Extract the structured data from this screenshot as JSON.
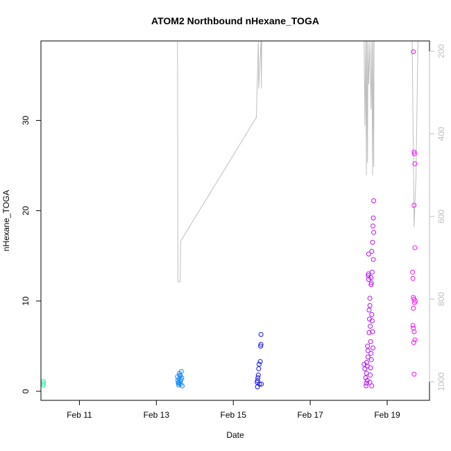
{
  "chart_data": {
    "type": "scatter",
    "title": "ATOM2 Northbound nHexane_TOGA",
    "xlabel": "Date",
    "ylabel": "nHexane_TOGA",
    "x_tick_labels": [
      "Feb 11",
      "Feb 13",
      "Feb 15",
      "Feb 17",
      "Feb 19"
    ],
    "x_tick_values": [
      11,
      13,
      15,
      17,
      19
    ],
    "xlim": [
      10.0,
      20.1
    ],
    "y_ticks": [
      0,
      10,
      20,
      30
    ],
    "ylim": [
      -1.0,
      38.8
    ],
    "secondary_axis": {
      "ticks": [
        200,
        400,
        600,
        800,
        1000
      ],
      "inverted": true,
      "lim": [
        1045,
        175
      ],
      "color": "#bebebe"
    },
    "grid": false,
    "points": [
      {
        "x": 10.06,
        "y": 1.1
      },
      {
        "x": 10.06,
        "y": 0.9
      },
      {
        "x": 10.06,
        "y": 0.7
      },
      {
        "x": 13.55,
        "y": 1.6
      },
      {
        "x": 13.56,
        "y": 1.2
      },
      {
        "x": 13.57,
        "y": 0.9
      },
      {
        "x": 13.58,
        "y": 0.7
      },
      {
        "x": 13.59,
        "y": 1.4
      },
      {
        "x": 13.6,
        "y": 2.0
      },
      {
        "x": 13.61,
        "y": 1.8
      },
      {
        "x": 13.62,
        "y": 1.1
      },
      {
        "x": 13.63,
        "y": 0.8
      },
      {
        "x": 13.64,
        "y": 1.3
      },
      {
        "x": 13.65,
        "y": 2.2
      },
      {
        "x": 13.66,
        "y": 1.5
      },
      {
        "x": 13.67,
        "y": 0.6
      },
      {
        "x": 13.58,
        "y": 1.0
      },
      {
        "x": 13.62,
        "y": 1.7
      },
      {
        "x": 15.62,
        "y": 1.0
      },
      {
        "x": 15.63,
        "y": 0.5
      },
      {
        "x": 15.64,
        "y": 1.5
      },
      {
        "x": 15.65,
        "y": 1.8
      },
      {
        "x": 15.66,
        "y": 2.5
      },
      {
        "x": 15.67,
        "y": 3.0
      },
      {
        "x": 15.68,
        "y": 0.8
      },
      {
        "x": 15.7,
        "y": 3.3
      },
      {
        "x": 15.71,
        "y": 5.0
      },
      {
        "x": 15.72,
        "y": 5.2
      },
      {
        "x": 15.72,
        "y": 6.3
      },
      {
        "x": 15.73,
        "y": 0.8
      },
      {
        "x": 15.63,
        "y": 1.2
      },
      {
        "x": 18.4,
        "y": 3.0
      },
      {
        "x": 18.42,
        "y": 2.5
      },
      {
        "x": 18.44,
        "y": 1.5
      },
      {
        "x": 18.45,
        "y": 0.6
      },
      {
        "x": 18.46,
        "y": 2.0
      },
      {
        "x": 18.47,
        "y": 3.2
      },
      {
        "x": 18.48,
        "y": 2.8
      },
      {
        "x": 18.49,
        "y": 5.0
      },
      {
        "x": 18.5,
        "y": 4.5
      },
      {
        "x": 18.51,
        "y": 12.8
      },
      {
        "x": 18.51,
        "y": 13.0
      },
      {
        "x": 18.52,
        "y": 15.2
      },
      {
        "x": 18.52,
        "y": 12.4
      },
      {
        "x": 18.53,
        "y": 6.5
      },
      {
        "x": 18.54,
        "y": 8.0
      },
      {
        "x": 18.55,
        "y": 10.3
      },
      {
        "x": 18.55,
        "y": 9.5
      },
      {
        "x": 18.56,
        "y": 7.2
      },
      {
        "x": 18.57,
        "y": 5.5
      },
      {
        "x": 18.58,
        "y": 4.2
      },
      {
        "x": 18.58,
        "y": 11.8
      },
      {
        "x": 18.59,
        "y": 12.0
      },
      {
        "x": 18.6,
        "y": 15.5
      },
      {
        "x": 18.61,
        "y": 13.2
      },
      {
        "x": 18.62,
        "y": 16.5
      },
      {
        "x": 18.63,
        "y": 18.3
      },
      {
        "x": 18.64,
        "y": 19.2
      },
      {
        "x": 18.65,
        "y": 21.1
      },
      {
        "x": 18.65,
        "y": 17.6
      },
      {
        "x": 18.6,
        "y": 8.5
      },
      {
        "x": 18.61,
        "y": 7.8
      },
      {
        "x": 18.62,
        "y": 6.6
      },
      {
        "x": 18.63,
        "y": 4.8
      },
      {
        "x": 18.59,
        "y": 3.5
      },
      {
        "x": 18.57,
        "y": 2.6
      },
      {
        "x": 18.56,
        "y": 1.8
      },
      {
        "x": 18.55,
        "y": 1.0
      },
      {
        "x": 18.6,
        "y": 0.6
      },
      {
        "x": 18.64,
        "y": 14.6
      },
      {
        "x": 18.5,
        "y": 3.8
      },
      {
        "x": 18.53,
        "y": 9.0
      },
      {
        "x": 18.48,
        "y": 1.2
      },
      {
        "x": 18.46,
        "y": 0.9
      },
      {
        "x": 18.58,
        "y": 12.6
      },
      {
        "x": 19.68,
        "y": 37.6
      },
      {
        "x": 19.7,
        "y": 26.5
      },
      {
        "x": 19.71,
        "y": 26.3
      },
      {
        "x": 19.72,
        "y": 25.2
      },
      {
        "x": 19.7,
        "y": 20.6
      },
      {
        "x": 19.72,
        "y": 15.9
      },
      {
        "x": 19.66,
        "y": 13.2
      },
      {
        "x": 19.67,
        "y": 12.5
      },
      {
        "x": 19.68,
        "y": 10.4
      },
      {
        "x": 19.7,
        "y": 10.2
      },
      {
        "x": 19.71,
        "y": 9.8
      },
      {
        "x": 19.73,
        "y": 10.0
      },
      {
        "x": 19.68,
        "y": 9.2
      },
      {
        "x": 19.67,
        "y": 7.3
      },
      {
        "x": 19.68,
        "y": 7.0
      },
      {
        "x": 19.7,
        "y": 6.6
      },
      {
        "x": 19.69,
        "y": 5.4
      },
      {
        "x": 19.72,
        "y": 5.7
      },
      {
        "x": 19.7,
        "y": 1.9
      }
    ],
    "secondary_series": {
      "name": "",
      "color": "#bebebe",
      "points": [
        {
          "x": 13.55,
          "y2": 175
        },
        {
          "x": 13.56,
          "y2": 758
        },
        {
          "x": 13.62,
          "y2": 758
        },
        {
          "x": 13.63,
          "y2": 660
        },
        {
          "x": 15.6,
          "y2": 360
        },
        {
          "x": 15.65,
          "y2": 175
        },
        {
          "x": 15.66,
          "y2": 290
        },
        {
          "x": 15.72,
          "y2": 175
        },
        {
          "x": 15.73,
          "y2": 290
        },
        {
          "x": 15.74,
          "y2": 175
        },
        {
          "x": 18.4,
          "y2": 175
        },
        {
          "x": 18.42,
          "y2": 380
        },
        {
          "x": 18.44,
          "y2": 175
        },
        {
          "x": 18.46,
          "y2": 500
        },
        {
          "x": 18.47,
          "y2": 175
        },
        {
          "x": 18.49,
          "y2": 470
        },
        {
          "x": 18.5,
          "y2": 175
        },
        {
          "x": 18.52,
          "y2": 280
        },
        {
          "x": 18.55,
          "y2": 175
        },
        {
          "x": 18.58,
          "y2": 340
        },
        {
          "x": 18.6,
          "y2": 175
        },
        {
          "x": 18.62,
          "y2": 500
        },
        {
          "x": 18.63,
          "y2": 175
        },
        {
          "x": 18.65,
          "y2": 480
        },
        {
          "x": 18.66,
          "y2": 175
        },
        {
          "x": 19.65,
          "y2": 175
        },
        {
          "x": 19.7,
          "y2": 625
        },
        {
          "x": 19.75,
          "y2": 500
        },
        {
          "x": 19.8,
          "y2": 175
        }
      ]
    }
  }
}
